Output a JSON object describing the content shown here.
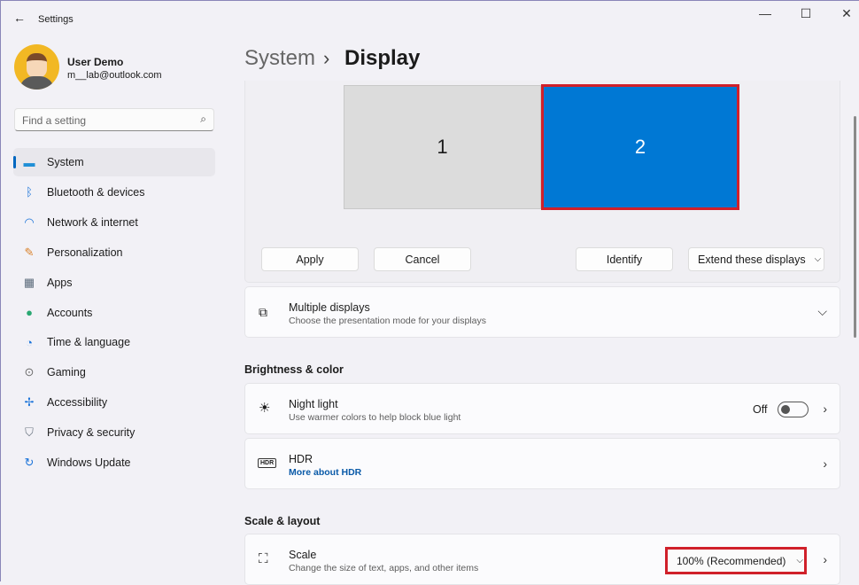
{
  "window": {
    "title": "Settings",
    "back_icon": "arrow-left-icon",
    "minimize": "—",
    "maximize": "☐",
    "close": "✕"
  },
  "user": {
    "name": "User Demo",
    "email": "m__lab@outlook.com"
  },
  "search": {
    "placeholder": "Find a setting"
  },
  "sidebar": {
    "items": [
      {
        "label": "System",
        "icon": "monitor-icon",
        "glyph": "▬",
        "color": "#1f8fd6",
        "active": true
      },
      {
        "label": "Bluetooth & devices",
        "icon": "bluetooth-icon",
        "glyph": "ᛒ",
        "color": "#1a73d9"
      },
      {
        "label": "Network & internet",
        "icon": "wifi-icon",
        "glyph": "◠",
        "color": "#1a73d9"
      },
      {
        "label": "Personalization",
        "icon": "brush-icon",
        "glyph": "✎",
        "color": "#d9822b"
      },
      {
        "label": "Apps",
        "icon": "apps-icon",
        "glyph": "▦",
        "color": "#5a6a7a"
      },
      {
        "label": "Accounts",
        "icon": "person-icon",
        "glyph": "●",
        "color": "#2aa872"
      },
      {
        "label": "Time & language",
        "icon": "globe-clock-icon",
        "glyph": "◔",
        "color": "#1a73d9"
      },
      {
        "label": "Gaming",
        "icon": "gamepad-icon",
        "glyph": "⊙",
        "color": "#6b6b6b"
      },
      {
        "label": "Accessibility",
        "icon": "accessibility-icon",
        "glyph": "✢",
        "color": "#1a73d9"
      },
      {
        "label": "Privacy & security",
        "icon": "shield-icon",
        "glyph": "⛉",
        "color": "#6b7580"
      },
      {
        "label": "Windows Update",
        "icon": "update-icon",
        "glyph": "↻",
        "color": "#1a73d9"
      }
    ]
  },
  "breadcrumb": {
    "parent": "System",
    "separator": "›",
    "current": "Display"
  },
  "displays": {
    "monitor1": "1",
    "monitor2": "2",
    "selected": "2",
    "accent": "#0078d4",
    "highlight": "#d0202a"
  },
  "actions": {
    "apply": "Apply",
    "cancel": "Cancel",
    "identify": "Identify",
    "mode": "Extend these displays"
  },
  "multiple_displays": {
    "title": "Multiple displays",
    "subtitle": "Choose the presentation mode for your displays"
  },
  "brightness": {
    "header": "Brightness & color",
    "night_light": {
      "title": "Night light",
      "subtitle": "Use warmer colors to help block blue light",
      "state": "Off"
    },
    "hdr": {
      "title": "HDR",
      "link": "More about HDR"
    }
  },
  "scale_layout": {
    "header": "Scale & layout",
    "scale": {
      "title": "Scale",
      "subtitle": "Change the size of text, apps, and other items",
      "value": "100% (Recommended)"
    }
  }
}
